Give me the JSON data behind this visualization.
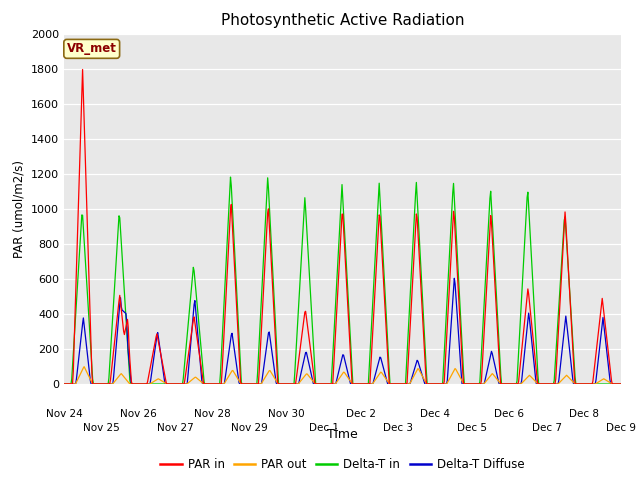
{
  "title": "Photosynthetic Active Radiation",
  "ylabel": "PAR (umol/m2/s)",
  "xlabel": "Time",
  "annotation": "VR_met",
  "ylim": [
    0,
    2000
  ],
  "yticks": [
    0,
    200,
    400,
    600,
    800,
    1000,
    1200,
    1400,
    1600,
    1800,
    2000
  ],
  "bg_color": "#e8e8e8",
  "fig_color": "#ffffff",
  "legend_labels": [
    "PAR in",
    "PAR out",
    "Delta-T in",
    "Delta-T Diffuse"
  ],
  "legend_colors": [
    "#ff0000",
    "#ffa500",
    "#00cc00",
    "#0000cc"
  ],
  "tick_labels": [
    "Nov 24",
    "Nov 25",
    "Nov 26",
    "Nov 27",
    "Nov 28",
    "Nov 29",
    "Nov 30",
    "Dec 1",
    "Dec 2",
    "Dec 3",
    "Dec 4",
    "Dec 5",
    "Dec 6",
    "Dec 7",
    "Dec 8",
    "Dec 9"
  ],
  "n_days": 15,
  "peaks_par_in": [
    1800,
    510,
    290,
    390,
    1050,
    1030,
    430,
    1010,
    1000,
    1000,
    1010,
    980,
    550,
    990,
    490
  ],
  "peaks_par_out": [
    100,
    60,
    30,
    40,
    80,
    80,
    60,
    70,
    70,
    90,
    90,
    60,
    50,
    50,
    30
  ],
  "peaks_delta_in": [
    1000,
    990,
    0,
    680,
    1200,
    1190,
    1070,
    1140,
    1150,
    1160,
    1160,
    1120,
    1120,
    980,
    0
  ],
  "peaks_delta_diff": [
    380,
    500,
    300,
    490,
    300,
    310,
    190,
    175,
    160,
    140,
    620,
    190,
    410,
    390,
    380
  ],
  "annotation_color": "#8b0000",
  "annotation_bg": "#ffffcc",
  "annotation_edge": "#8b6914"
}
